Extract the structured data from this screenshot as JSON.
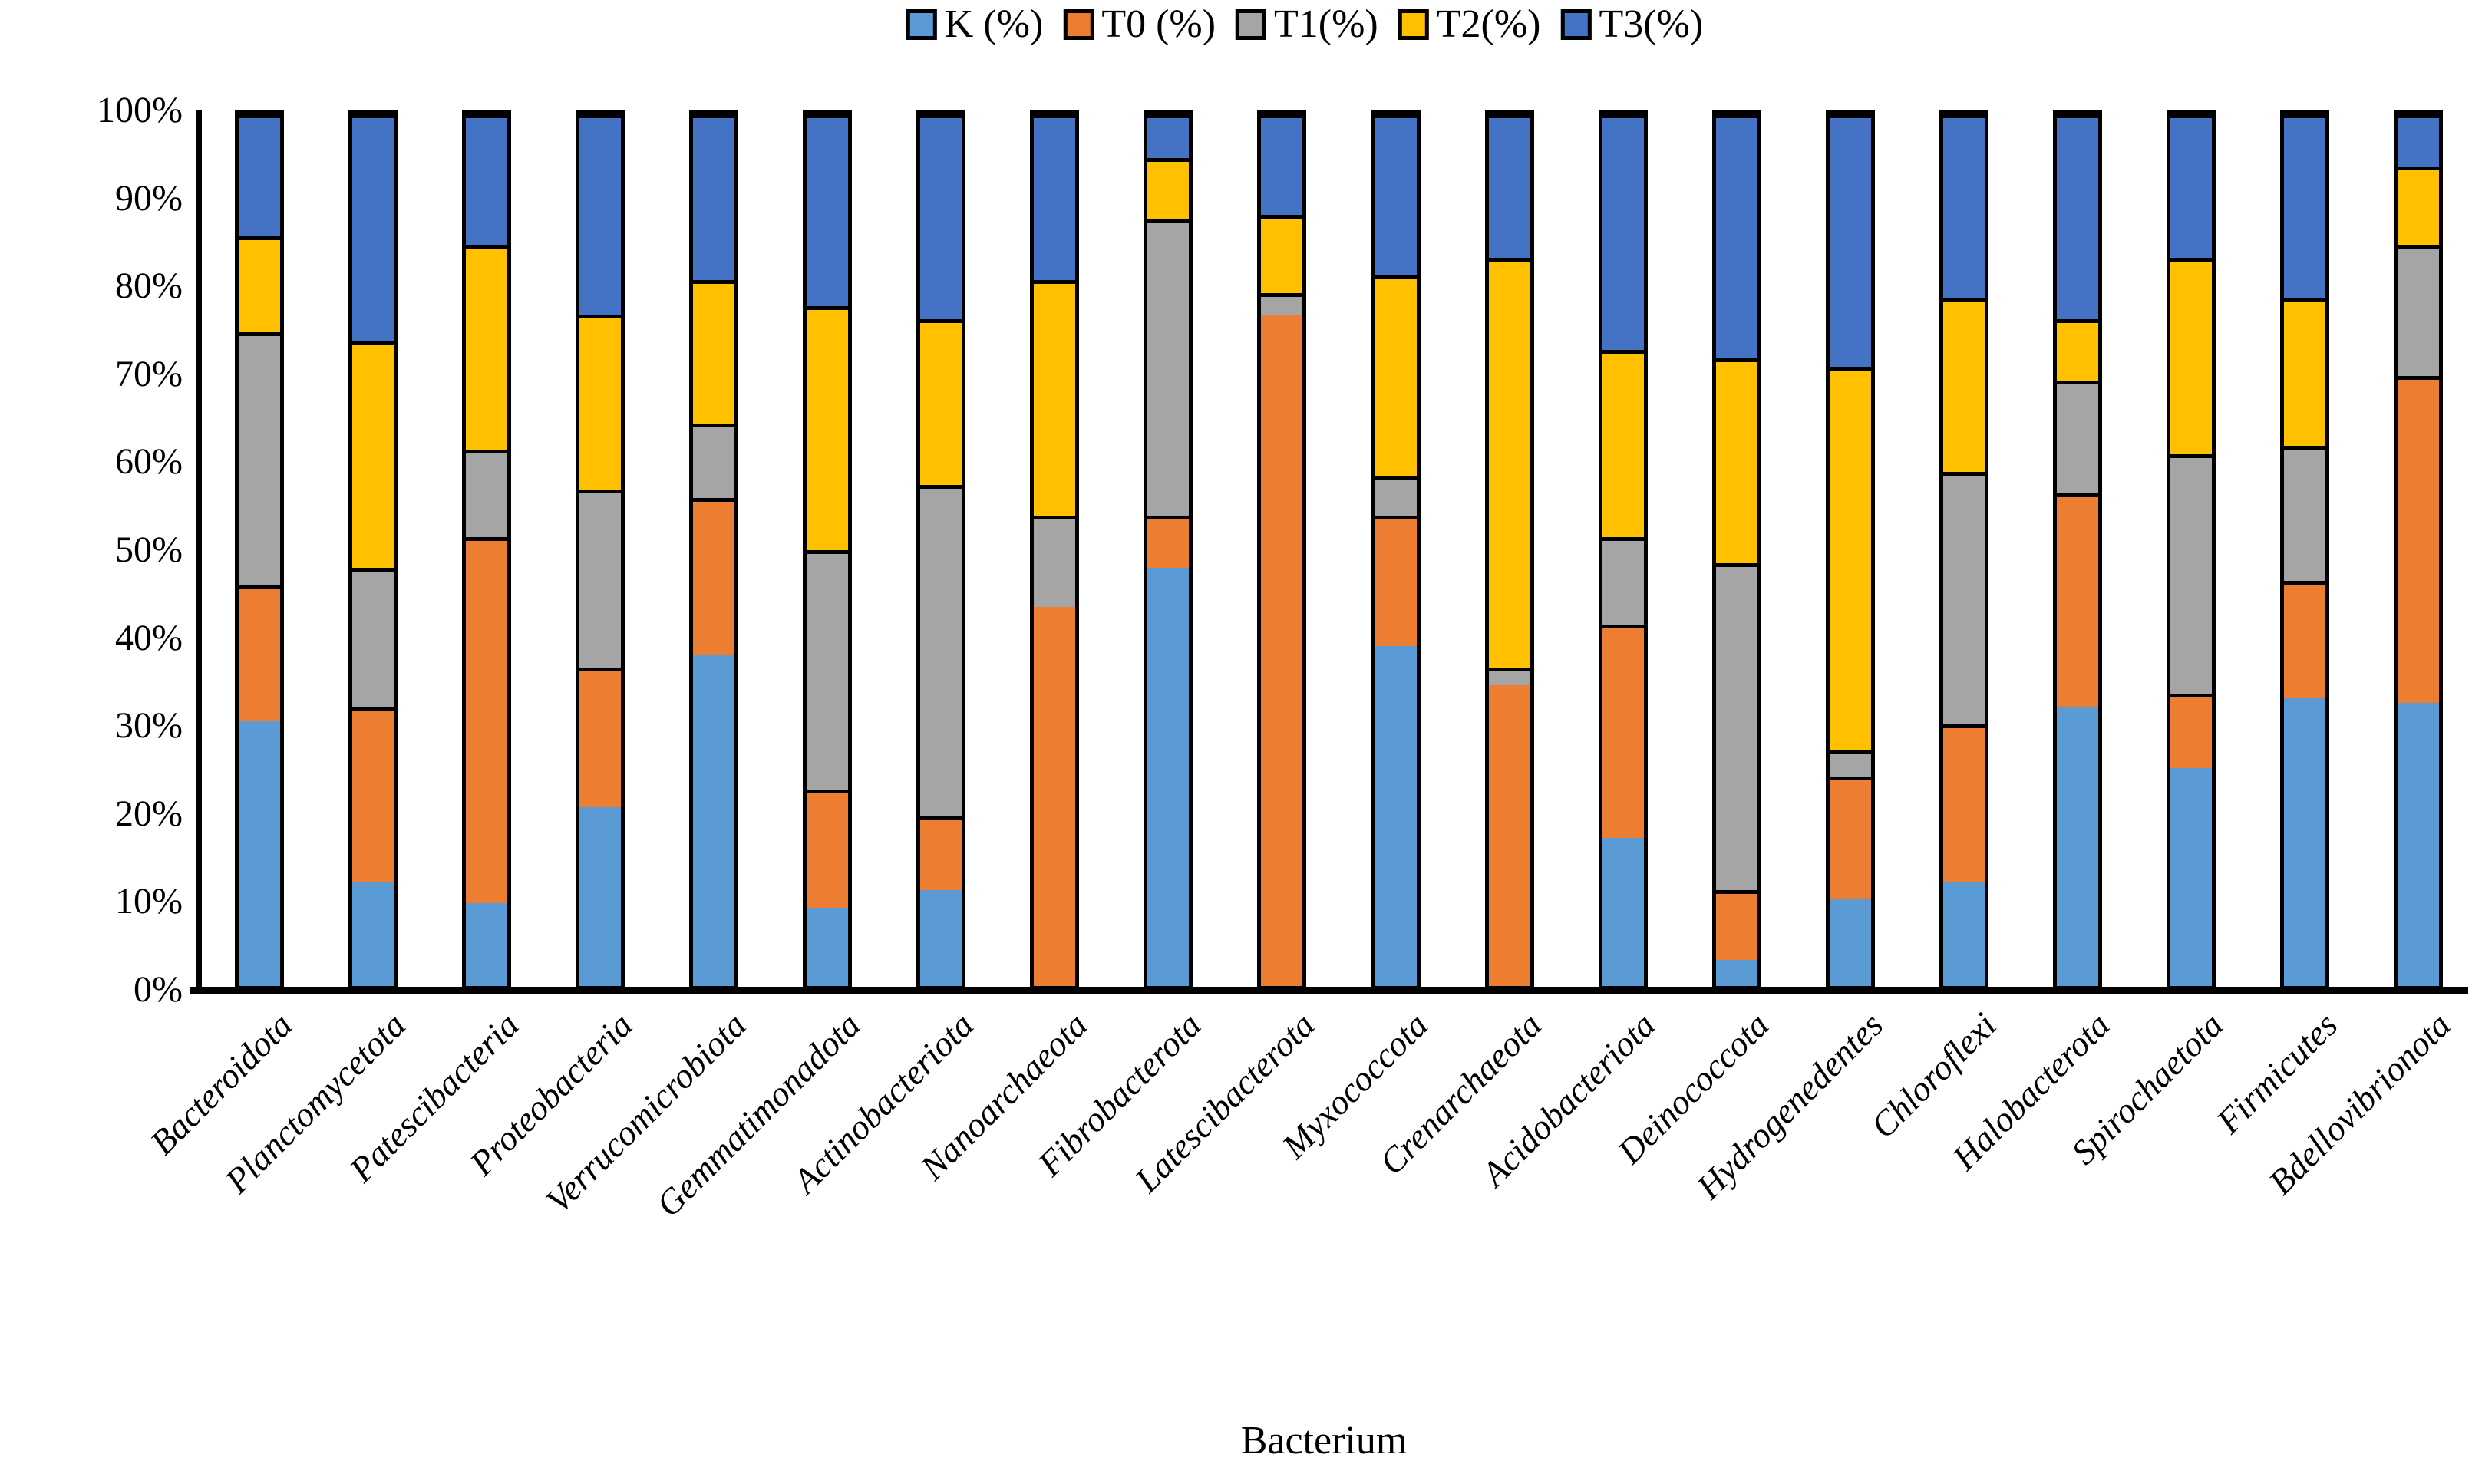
{
  "chart_data": {
    "type": "bar",
    "subtype": "stacked-100",
    "title": "",
    "xlabel": "Bacterium",
    "ylabel": "",
    "ylim": [
      0,
      100
    ],
    "grid": false,
    "legend_position": "top-center",
    "y_ticks": [
      "0%",
      "10%",
      "20%",
      "30%",
      "40%",
      "50%",
      "60%",
      "70%",
      "80%",
      "90%",
      "100%"
    ],
    "categories": [
      "Bacteroidota",
      "Planctomycetota",
      "Patescibacteria",
      "Proteobacteria",
      "Verrucomicrobiota",
      "Gemmatimonadota",
      "Actinobacteriota",
      "Nanoarchaeota",
      "Fibrobacterota",
      "Latescibacterota",
      "Myxococcota",
      "Crenarchaeota",
      "Acidobacteriota",
      "Deinococcota",
      "Hydrogenedentes",
      "Chloroflexi",
      "Halobacterota",
      "Spirochaetota",
      "Firmicutes",
      "Bdellovibrionota"
    ],
    "series": [
      {
        "name": "K (%)",
        "color": "#5B9BD5",
        "values": [
          30.5,
          12,
          9.5,
          20.5,
          38,
          9,
          11,
          0,
          48,
          0,
          39,
          0,
          17,
          3,
          10,
          12,
          32,
          25,
          33,
          32.5
        ]
      },
      {
        "name": "T0 (%)",
        "color": "#ED7D31",
        "values": [
          15.5,
          20,
          42,
          16,
          18,
          13.5,
          8.5,
          43.5,
          6,
          77,
          15,
          34.5,
          24.5,
          8,
          14,
          18,
          24.5,
          8.5,
          13.5,
          37.5
        ]
      },
      {
        "name": "T1(%)",
        "color": "#A5A5A5",
        "values": [
          29,
          16,
          10,
          20.5,
          8.5,
          27.5,
          38,
          10.5,
          34,
          2.5,
          4.5,
          2,
          10,
          37.5,
          3,
          29,
          13,
          27.5,
          15.5,
          15
        ]
      },
      {
        "name": "T2(%)",
        "color": "#FFC000",
        "values": [
          11,
          26,
          23.5,
          20,
          16.5,
          28,
          19,
          27,
          7,
          9,
          23,
          47,
          21.5,
          23.5,
          44,
          20,
          7,
          22.5,
          17,
          9
        ]
      },
      {
        "name": "T3(%)",
        "color": "#4472C4",
        "values": [
          14,
          26,
          15,
          23,
          19,
          22,
          23.5,
          19,
          5,
          11.5,
          18.5,
          16.5,
          27,
          28,
          29,
          21,
          23.5,
          16.5,
          21,
          6
        ]
      }
    ]
  }
}
